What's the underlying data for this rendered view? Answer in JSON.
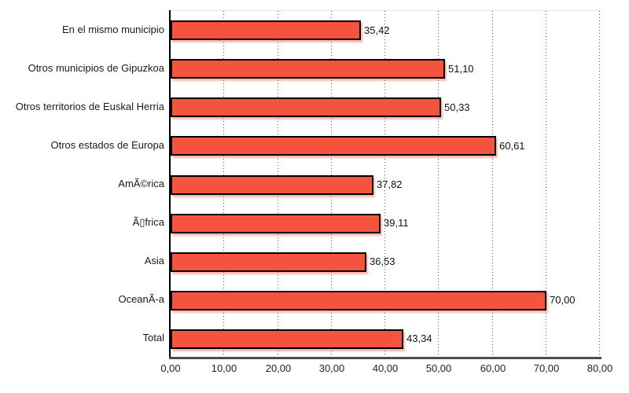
{
  "chart_data": {
    "type": "bar",
    "orientation": "horizontal",
    "title": "",
    "xlabel": "",
    "ylabel": "",
    "categories": [
      "En el mismo municipio",
      "Otros municipios de Gipuzkoa",
      "Otros territorios de Euskal Herria",
      "Otros estados de Europa",
      "AmÃ©rica",
      "Ã▯frica",
      "Asia",
      "OceanÃ-a",
      "Total"
    ],
    "values": [
      35.42,
      51.1,
      50.33,
      60.61,
      37.82,
      39.11,
      36.53,
      70.0,
      43.34
    ],
    "value_labels": [
      "35,42",
      "51,10",
      "50,33",
      "60,61",
      "37,82",
      "39,11",
      "36,53",
      "70,00",
      "43,34"
    ],
    "x_tick_labels": [
      "0,00",
      "10,00",
      "20,00",
      "30,00",
      "40,00",
      "50,00",
      "60,00",
      "70,00",
      "80,00"
    ],
    "x_tick_values": [
      0,
      10,
      20,
      30,
      40,
      50,
      60,
      70,
      80
    ],
    "xlim": [
      0,
      80
    ],
    "grid": "dotted-vertical",
    "legend": "none",
    "colors": {
      "bar_fill": "#f4533d",
      "bar_border": "#000000",
      "bar_shadow": "rgba(240,100,80,0.45)",
      "axis_line": "#4d4d4d",
      "y_axis_line": "#000000",
      "gridline": "#555555",
      "text": "#1a1a1a",
      "plot_top_border": "#e6e6e6",
      "background": "#ffffff"
    }
  }
}
